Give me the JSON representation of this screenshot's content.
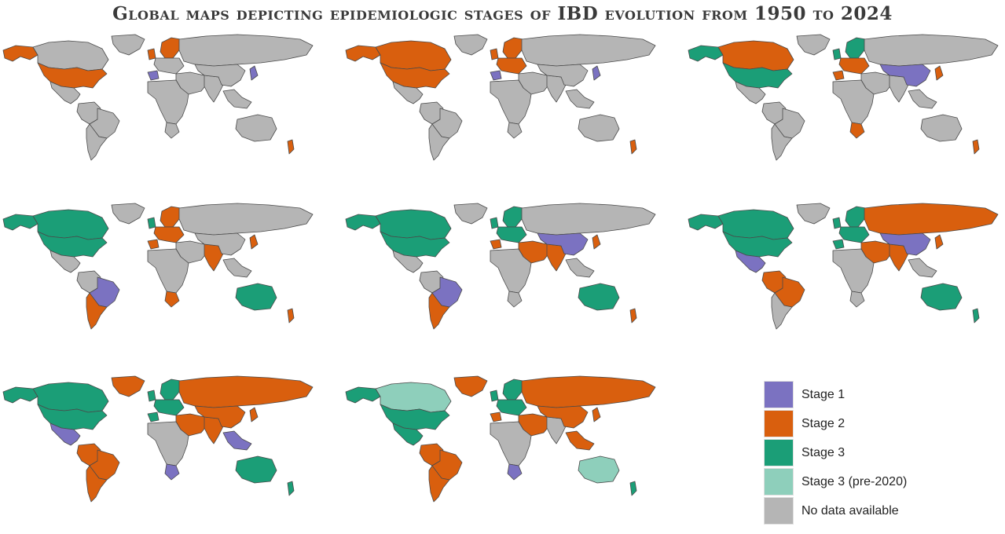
{
  "title": "Global maps depicting epidemiologic stages of IBD evolution from 1950 to 2024",
  "colors": {
    "stage1": "#7b72c1",
    "stage2": "#d95f0e",
    "stage3": "#1b9e77",
    "stage3pre": "#8ecfbb",
    "nodata": "#b5b5b5",
    "border": "#4a4a4a"
  },
  "legend": [
    {
      "key": "stage1",
      "label": "Stage 1"
    },
    {
      "key": "stage2",
      "label": "Stage 2"
    },
    {
      "key": "stage3",
      "label": "Stage 3"
    },
    {
      "key": "stage3pre",
      "label": "Stage 3 (pre-2020)"
    },
    {
      "key": "nodata",
      "label": "No data available"
    }
  ],
  "maps": [
    {
      "usa": "stage2",
      "canada": "nodata",
      "alaska": "stage2",
      "greenland": "nodata",
      "mexico": "nodata",
      "southam": "nodata",
      "brazil": "nodata",
      "argentina": "nodata",
      "westeu": "nodata",
      "scandinavia": "stage2",
      "uk": "stage2",
      "iberia": "stage1",
      "russia": "nodata",
      "middleeast": "nodata",
      "india": "nodata",
      "china": "nodata",
      "japan": "stage1",
      "africa": "nodata",
      "southafrica": "nodata",
      "australia": "nodata",
      "nz": "stage2",
      "seasia": "nodata"
    },
    {
      "usa": "stage2",
      "canada": "stage2",
      "alaska": "stage2",
      "greenland": "nodata",
      "mexico": "nodata",
      "southam": "nodata",
      "brazil": "nodata",
      "argentina": "nodata",
      "westeu": "stage2",
      "scandinavia": "stage2",
      "uk": "stage2",
      "iberia": "stage1",
      "russia": "nodata",
      "middleeast": "nodata",
      "india": "nodata",
      "china": "nodata",
      "japan": "stage1",
      "africa": "nodata",
      "southafrica": "nodata",
      "australia": "nodata",
      "nz": "stage2",
      "seasia": "nodata"
    },
    {
      "usa": "stage3",
      "canada": "stage2",
      "alaska": "stage3",
      "greenland": "nodata",
      "mexico": "nodata",
      "southam": "nodata",
      "brazil": "nodata",
      "argentina": "nodata",
      "westeu": "stage2",
      "scandinavia": "stage3",
      "uk": "stage3",
      "iberia": "stage2",
      "russia": "nodata",
      "middleeast": "nodata",
      "india": "nodata",
      "china": "stage1",
      "japan": "stage2",
      "africa": "nodata",
      "southafrica": "stage2",
      "australia": "nodata",
      "nz": "stage2",
      "seasia": "nodata"
    },
    {
      "usa": "stage3",
      "canada": "stage3",
      "alaska": "stage3",
      "greenland": "nodata",
      "mexico": "nodata",
      "southam": "nodata",
      "brazil": "stage1",
      "argentina": "stage2",
      "westeu": "stage2",
      "scandinavia": "stage2",
      "uk": "stage3",
      "iberia": "stage2",
      "russia": "nodata",
      "middleeast": "nodata",
      "india": "stage2",
      "china": "nodata",
      "japan": "stage2",
      "africa": "nodata",
      "southafrica": "stage2",
      "australia": "stage3",
      "nz": "stage2",
      "seasia": "nodata"
    },
    {
      "usa": "stage3",
      "canada": "stage3",
      "alaska": "stage3",
      "greenland": "nodata",
      "mexico": "nodata",
      "southam": "nodata",
      "brazil": "stage1",
      "argentina": "stage2",
      "westeu": "stage3",
      "scandinavia": "stage3",
      "uk": "stage3",
      "iberia": "stage2",
      "russia": "nodata",
      "middleeast": "stage2",
      "india": "stage2",
      "china": "stage1",
      "japan": "stage2",
      "africa": "nodata",
      "southafrica": "nodata",
      "australia": "stage3",
      "nz": "stage2",
      "seasia": "nodata"
    },
    {
      "usa": "stage3",
      "canada": "stage3",
      "alaska": "stage3",
      "greenland": "nodata",
      "mexico": "stage1",
      "southam": "stage2",
      "brazil": "stage2",
      "argentina": "nodata",
      "westeu": "stage3",
      "scandinavia": "stage3",
      "uk": "stage3",
      "iberia": "stage3",
      "russia": "stage2",
      "middleeast": "stage2",
      "india": "stage2",
      "china": "stage1",
      "japan": "stage2",
      "africa": "nodata",
      "southafrica": "nodata",
      "australia": "stage3",
      "nz": "stage3",
      "seasia": "nodata"
    },
    {
      "usa": "stage3",
      "canada": "stage3",
      "alaska": "stage3",
      "greenland": "stage2",
      "mexico": "stage1",
      "southam": "stage2",
      "brazil": "stage2",
      "argentina": "stage2",
      "westeu": "stage3",
      "scandinavia": "stage3",
      "uk": "stage3",
      "iberia": "stage3",
      "russia": "stage2",
      "middleeast": "stage2",
      "india": "stage2",
      "china": "stage2",
      "japan": "stage2",
      "africa": "nodata",
      "southafrica": "stage1",
      "australia": "stage3",
      "nz": "stage3",
      "seasia": "stage1"
    },
    {
      "usa": "stage3",
      "canada": "stage3pre",
      "alaska": "stage3",
      "greenland": "stage2",
      "mexico": "stage3",
      "southam": "stage2",
      "brazil": "stage2",
      "argentina": "stage2",
      "westeu": "stage3",
      "scandinavia": "stage3",
      "uk": "stage3",
      "iberia": "stage2",
      "russia": "stage2",
      "middleeast": "stage2",
      "india": "nodata",
      "china": "stage2",
      "japan": "stage2",
      "africa": "nodata",
      "southafrica": "stage1",
      "australia": "stage3pre",
      "nz": "stage3",
      "seasia": "stage2"
    }
  ]
}
